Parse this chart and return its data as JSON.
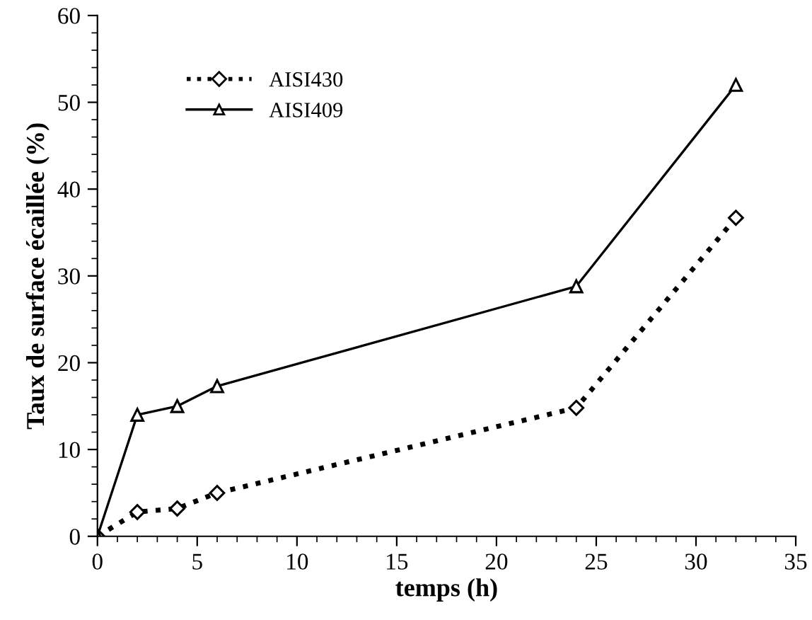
{
  "chart_data": {
    "type": "line",
    "xlabel": "temps (h)",
    "ylabel": "Taux de surface écaillée (%)",
    "x": [
      0,
      2,
      4,
      6,
      24,
      32
    ],
    "series": [
      {
        "name": "AISI430",
        "color": "#000000",
        "values": [
          0,
          2.8,
          3.2,
          5,
          14.8,
          36.7
        ],
        "marker": "diamond",
        "line_style": "dotted"
      },
      {
        "name": "AISI409",
        "color": "#000000",
        "values": [
          0,
          14,
          15,
          17.3,
          28.8,
          52
        ],
        "marker": "triangle",
        "line_style": "solid"
      }
    ],
    "xlim": [
      0,
      35
    ],
    "xticks": [
      0,
      5,
      10,
      15,
      20,
      25,
      30,
      35
    ],
    "ylim": [
      0,
      60
    ],
    "yticks": [
      0,
      10,
      20,
      30,
      40,
      50,
      60
    ],
    "grid": false,
    "legend": "top left"
  }
}
